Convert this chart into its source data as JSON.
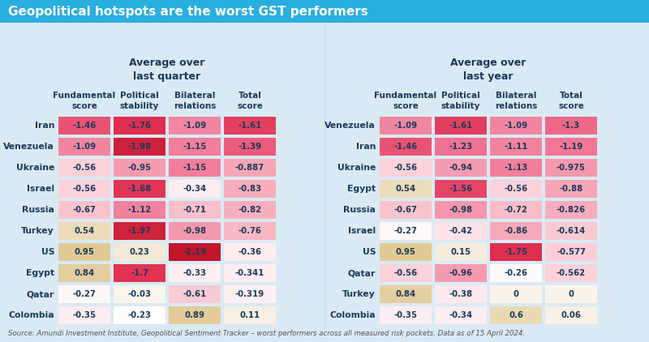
{
  "title": "Geopolitical hotspots are the worst GST performers",
  "title_bg": "#29aee0",
  "bg_color": "#daeaf5",
  "source": "Source: Amundi Investment Institute, Geopolitical Sentiment Tracker – worst performers across all measured risk pockets. Data as of 15 April 2024.",
  "left_header": "Average over\nlast quarter",
  "right_header": "Average over\nlast year",
  "col_headers": [
    "Fundamental\nscore",
    "Political\nstability",
    "Bilateral\nrelations",
    "Total\nscore"
  ],
  "left_rows": [
    {
      "country": "Iran",
      "vals": [
        -1.46,
        -1.76,
        -1.09,
        -1.61
      ]
    },
    {
      "country": "Venezuela",
      "vals": [
        -1.09,
        -1.98,
        -1.15,
        -1.39
      ]
    },
    {
      "country": "Ukraine",
      "vals": [
        -0.56,
        -0.95,
        -1.15,
        -0.887
      ]
    },
    {
      "country": "Israel",
      "vals": [
        -0.56,
        -1.68,
        -0.34,
        -0.83
      ]
    },
    {
      "country": "Russia",
      "vals": [
        -0.67,
        -1.12,
        -0.71,
        -0.82
      ]
    },
    {
      "country": "Turkey",
      "vals": [
        0.54,
        -1.97,
        -0.98,
        -0.76
      ]
    },
    {
      "country": "US",
      "vals": [
        0.95,
        0.23,
        -2.19,
        -0.36
      ]
    },
    {
      "country": "Egypt",
      "vals": [
        0.84,
        -1.7,
        -0.33,
        -0.341
      ]
    },
    {
      "country": "Qatar",
      "vals": [
        -0.27,
        -0.03,
        -0.61,
        -0.319
      ]
    },
    {
      "country": "Colombia",
      "vals": [
        -0.35,
        -0.23,
        0.89,
        0.11
      ]
    }
  ],
  "right_rows": [
    {
      "country": "Venezuela",
      "vals": [
        -1.09,
        -1.61,
        -1.09,
        -1.3
      ]
    },
    {
      "country": "Iran",
      "vals": [
        -1.46,
        -1.23,
        -1.11,
        -1.19
      ]
    },
    {
      "country": "Ukraine",
      "vals": [
        -0.56,
        -0.94,
        -1.13,
        -0.975
      ]
    },
    {
      "country": "Egypt",
      "vals": [
        0.54,
        -1.56,
        -0.56,
        -0.88
      ]
    },
    {
      "country": "Russia",
      "vals": [
        -0.67,
        -0.98,
        -0.72,
        -0.826
      ]
    },
    {
      "country": "Israel",
      "vals": [
        -0.27,
        -0.42,
        -0.86,
        -0.614
      ]
    },
    {
      "country": "US",
      "vals": [
        0.95,
        0.15,
        -1.75,
        -0.577
      ]
    },
    {
      "country": "Qatar",
      "vals": [
        -0.56,
        -0.96,
        -0.26,
        -0.562
      ]
    },
    {
      "country": "Turkey",
      "vals": [
        0.84,
        -0.38,
        0.0,
        0.0
      ]
    },
    {
      "country": "Colombia",
      "vals": [
        -0.35,
        -0.34,
        0.6,
        0.06
      ]
    }
  ],
  "vmin": -2.2,
  "vmax": 1.0,
  "text_labels_left": [
    [
      "-1.46",
      "-1.76",
      "-1.09",
      "-1.61"
    ],
    [
      "-1.09",
      "-1.98",
      "-1.15",
      "-1.39"
    ],
    [
      "-0.56",
      "-0.95",
      "-1.15",
      "-0.887"
    ],
    [
      "-0.56",
      "-1.68",
      "-0.34",
      "-0.83"
    ],
    [
      "-0.67",
      "-1.12",
      "-0.71",
      "-0.82"
    ],
    [
      "0.54",
      "-1.97",
      "-0.98",
      "-0.76"
    ],
    [
      "0.95",
      "0.23",
      "-2.19",
      "-0.36"
    ],
    [
      "0.84",
      "-1.7",
      "-0.33",
      "-0.341"
    ],
    [
      "-0.27",
      "-0.03",
      "-0.61",
      "-0.319"
    ],
    [
      "-0.35",
      "-0.23",
      "0.89",
      "0.11"
    ]
  ],
  "text_labels_right": [
    [
      "-1.09",
      "-1.61",
      "-1.09",
      "-1.3"
    ],
    [
      "-1.46",
      "-1.23",
      "-1.11",
      "-1.19"
    ],
    [
      "-0.56",
      "-0.94",
      "-1.13",
      "-0.975"
    ],
    [
      "0.54",
      "-1.56",
      "-0.56",
      "-0.88"
    ],
    [
      "-0.67",
      "-0.98",
      "-0.72",
      "-0.826"
    ],
    [
      "-0.27",
      "-0.42",
      "-0.86",
      "-0.614"
    ],
    [
      "0.95",
      "0.15",
      "-1.75",
      "-0.577"
    ],
    [
      "-0.56",
      "-0.96",
      "-0.26",
      "-0.562"
    ],
    [
      "0.84",
      "-0.38",
      "0",
      "0"
    ],
    [
      "-0.35",
      "-0.34",
      "0.6",
      "0.06"
    ]
  ]
}
